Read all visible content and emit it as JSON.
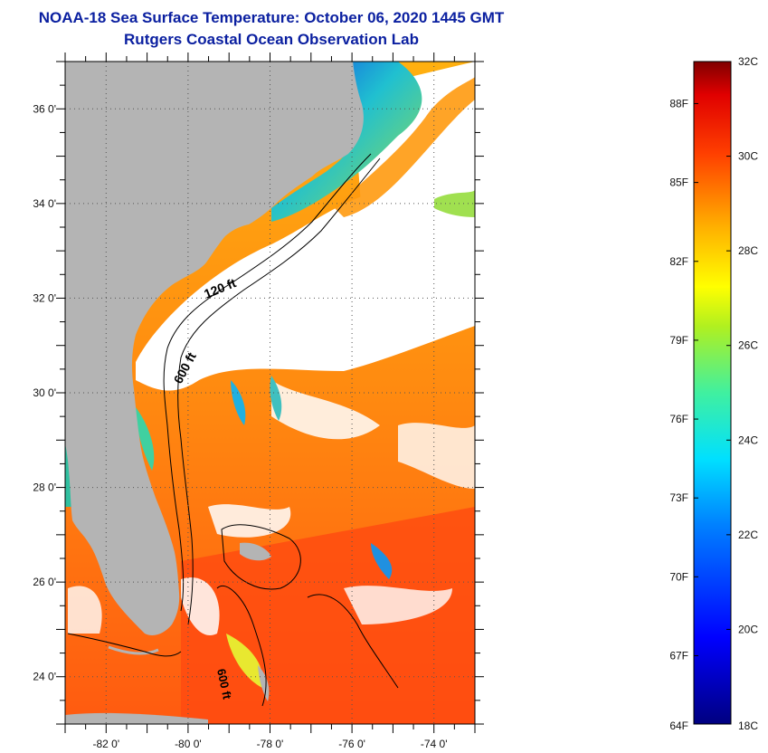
{
  "header": {
    "title": "NOAA-18 Sea Surface Temperature:  October 06, 2020 1445 GMT",
    "subtitle": "Rutgers Coastal Ocean Observation Lab"
  },
  "map": {
    "lon_labels": [
      "-82 0'",
      "-80 0'",
      "-78 0'",
      "-76 0'",
      "-74 0'"
    ],
    "lat_labels": [
      "36 0'",
      "34 0'",
      "32 0'",
      "30 0'",
      "28 0'",
      "26 0'",
      "24 0'"
    ],
    "lon_values": [
      -82,
      -80,
      -78,
      -76,
      -74
    ],
    "lat_values": [
      36,
      34,
      32,
      30,
      28,
      26,
      24
    ],
    "lon_range": [
      -83,
      -73
    ],
    "lat_range": [
      23,
      37
    ],
    "contour_labels": [
      "120 ft",
      "600 ft",
      "600 ft"
    ],
    "colors": {
      "land": "#b4b4b4",
      "cloud": "#ffffff",
      "cold_water": "#1030e0",
      "warm_water": "#ff6a10"
    }
  },
  "colorbar": {
    "celsius_labels": [
      "32C",
      "30C",
      "28C",
      "26C",
      "24C",
      "22C",
      "20C",
      "18C"
    ],
    "fahrenheit_labels": [
      "88F",
      "85F",
      "82F",
      "79F",
      "76F",
      "73F",
      "70F",
      "67F",
      "64F"
    ],
    "celsius_values": [
      32,
      30,
      28,
      26,
      24,
      22,
      20,
      18
    ],
    "fahrenheit_values": [
      88,
      85,
      82,
      79,
      76,
      73,
      70,
      67,
      64
    ],
    "range_c": [
      18,
      32
    ]
  }
}
